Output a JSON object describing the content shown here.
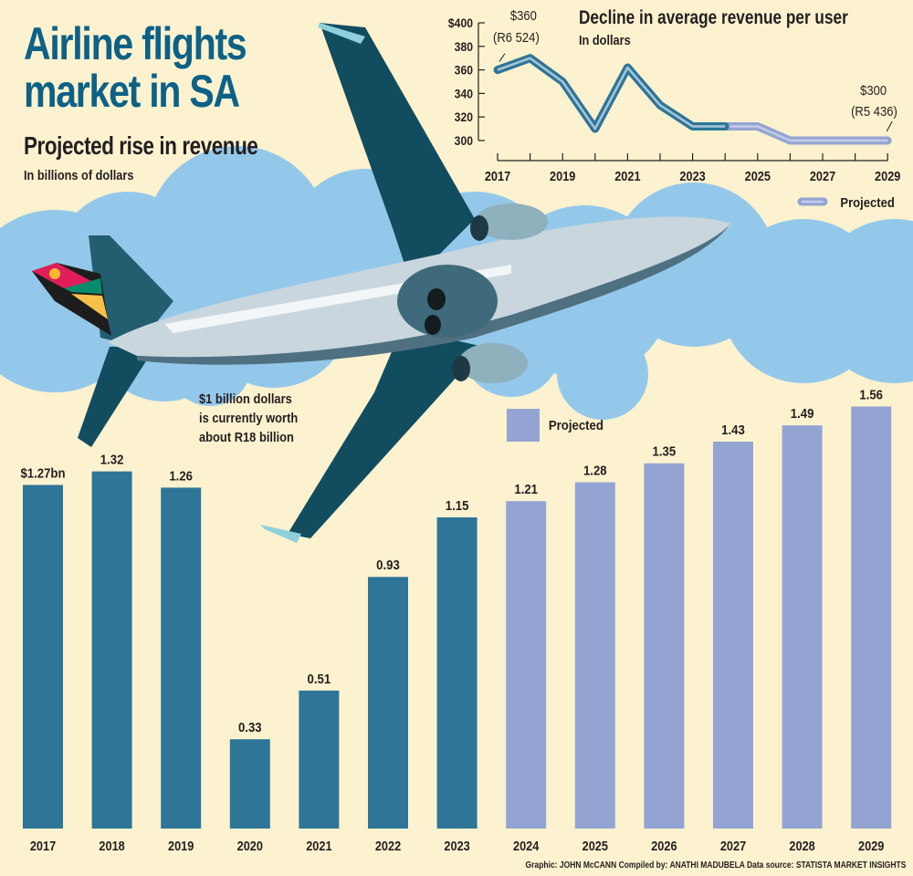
{
  "header": {
    "title_line1": "Airline flights",
    "title_line2": "market in SA",
    "subtitle": "Projected rise in revenue",
    "unit": "In billions of dollars"
  },
  "note": {
    "line1": "$1 billion dollars",
    "line2": "is currently worth",
    "line3": "about R18 billion"
  },
  "credits": "Graphic: JOHN McCANN  Compiled by: ANATHI MADUBELA  Data source: STATISTA MARKET INSIGHTS",
  "colors": {
    "background": "#fdf2cf",
    "actual": "#2e7598",
    "projected": "#94a4d2",
    "title": "#0d6187",
    "cloud": "#94c8ea",
    "text": "#231f20"
  },
  "chart_data": [
    {
      "type": "bar",
      "title": "Projected rise in revenue",
      "ylabel": "In billions of dollars",
      "xlabel": "",
      "categories": [
        "2017",
        "2018",
        "2019",
        "2020",
        "2021",
        "2022",
        "2023",
        "2024",
        "2025",
        "2026",
        "2027",
        "2028",
        "2029"
      ],
      "values": [
        1.27,
        1.32,
        1.26,
        0.33,
        0.51,
        0.93,
        1.15,
        1.21,
        1.28,
        1.35,
        1.43,
        1.49,
        1.56
      ],
      "value_labels": [
        "$1.27bn",
        "1.32",
        "1.26",
        "0.33",
        "0.51",
        "0.93",
        "1.15",
        "1.21",
        "1.28",
        "1.35",
        "1.43",
        "1.49",
        "1.56"
      ],
      "projected_from": "2024",
      "legend": [
        {
          "label": "Projected",
          "color": "#94a4d2"
        }
      ],
      "legend_position": "top-center",
      "ylim": [
        0,
        1.6
      ],
      "grid": false
    },
    {
      "type": "line",
      "title": "Decline in average revenue per user",
      "ylabel": "In dollars",
      "x": [
        "2017",
        "2018",
        "2019",
        "2020",
        "2021",
        "2022",
        "2023",
        "2024",
        "2025",
        "2026",
        "2027",
        "2028",
        "2029"
      ],
      "x_tick_labels": [
        "2017",
        "2019",
        "2021",
        "2023",
        "2025",
        "2027",
        "2029"
      ],
      "values": [
        360,
        370,
        350,
        310,
        362,
        330,
        312,
        312,
        312,
        300,
        300,
        300,
        300
      ],
      "projected_from": "2024",
      "y_ticks": [
        "$400",
        "380",
        "360",
        "340",
        "320",
        "300"
      ],
      "ylim": [
        300,
        400
      ],
      "annotations": [
        {
          "x": "2017",
          "line1": "$360",
          "line2": "(R6 524)"
        },
        {
          "x": "2029",
          "line1": "$300",
          "line2": "(R5 436)"
        }
      ],
      "legend": [
        {
          "label": "Projected",
          "color": "#94a4d2"
        }
      ],
      "legend_position": "bottom-right",
      "grid": false
    }
  ]
}
